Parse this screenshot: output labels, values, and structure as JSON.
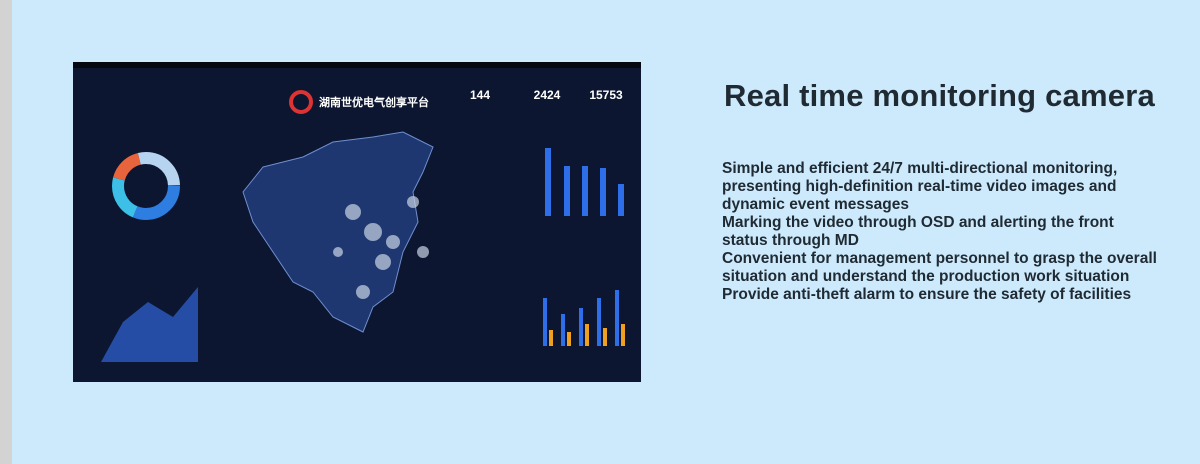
{
  "screen": {
    "platform_name": "湖南世优电气创享平台",
    "stats": [
      "144",
      "2424",
      "15753"
    ]
  },
  "heading": "Real time monitoring camera",
  "paragraphs": [
    "Simple and efficient 24/7 multi-directional monitoring, presenting high-definition real-time video images and dynamic event messages",
    "Marking the video through OSD and alerting the front status through MD",
    "Convenient for management personnel to grasp the overall situation and understand the production work situation",
    "Provide anti-theft alarm to ensure the safety of facilities"
  ]
}
